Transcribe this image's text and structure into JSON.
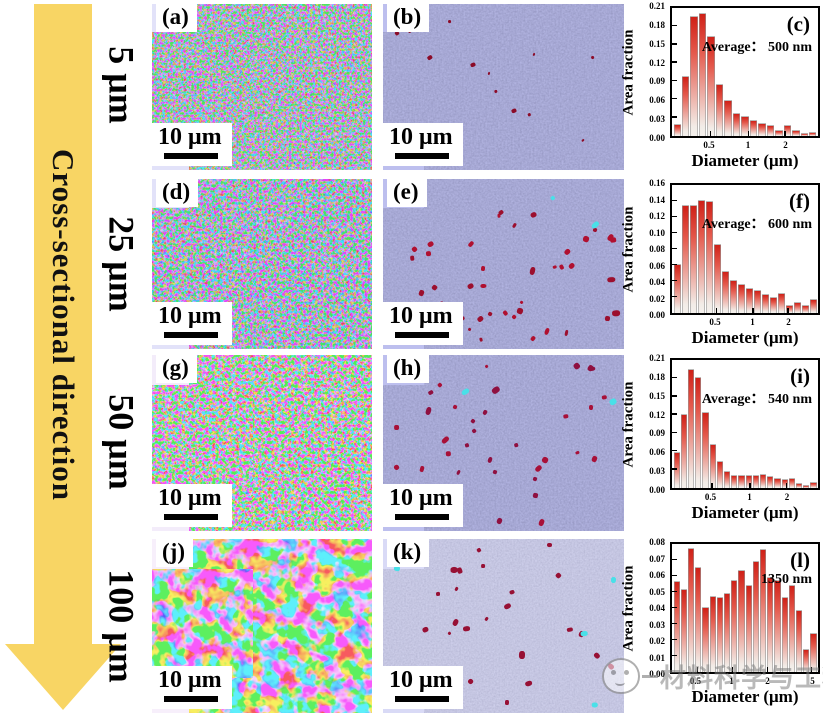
{
  "figure": {
    "arrow_label": "Cross-sectional direction",
    "watermark_text": "材料科学与工程",
    "rows": [
      {
        "depth_label": "5 μm",
        "panel1": {
          "letter": "(a)",
          "scalebar": "10 μm"
        },
        "panel2": {
          "letter": "(b)",
          "scalebar": "10 μm"
        }
      },
      {
        "depth_label": "25 μm",
        "panel1": {
          "letter": "(d)",
          "scalebar": "10 μm"
        },
        "panel2": {
          "letter": "(e)",
          "scalebar": "10 μm"
        }
      },
      {
        "depth_label": "50 μm",
        "panel1": {
          "letter": "(g)",
          "scalebar": "10 μm"
        },
        "panel2": {
          "letter": "(h)",
          "scalebar": "10 μm"
        }
      },
      {
        "depth_label": "100 μm",
        "panel1": {
          "letter": "(j)",
          "scalebar": "10 μm"
        },
        "panel2": {
          "letter": "(k)",
          "scalebar": "10 μm"
        }
      }
    ]
  },
  "chart_data": [
    {
      "type": "bar",
      "panel_letter": "(c)",
      "annotation": "Average：  500 nm",
      "xlabel": "Diameter (μm)",
      "ylabel": "Area fraction",
      "ylim": [
        0,
        0.21
      ],
      "yticks": [
        "0.00",
        "0.03",
        "0.06",
        "0.09",
        "0.12",
        "0.15",
        "0.18",
        "0.21"
      ],
      "xticks": [
        {
          "label": "0.5",
          "pos": 0.26
        },
        {
          "label": "1",
          "pos": 0.52
        },
        {
          "label": "2",
          "pos": 0.77
        }
      ],
      "values": [
        0.018,
        0.097,
        0.195,
        0.201,
        0.162,
        0.084,
        0.057,
        0.036,
        0.031,
        0.024,
        0.02,
        0.016,
        0.008,
        0.016,
        0.008,
        0.004,
        0.005
      ],
      "bar_color_top": "#cf2017",
      "legend": "none",
      "grid": false
    },
    {
      "type": "bar",
      "panel_letter": "(f)",
      "annotation": "Average：  600 nm",
      "xlabel": "Diameter (μm)",
      "ylabel": "Area fraction",
      "ylim": [
        0,
        0.16
      ],
      "yticks": [
        "0.00",
        "0.02",
        "0.04",
        "0.06",
        "0.08",
        "0.10",
        "0.12",
        "0.14",
        "0.16"
      ],
      "xticks": [
        {
          "label": "0.5",
          "pos": 0.3
        },
        {
          "label": "1",
          "pos": 0.55
        },
        {
          "label": "2",
          "pos": 0.79
        }
      ],
      "values": [
        0.06,
        0.134,
        0.134,
        0.14,
        0.139,
        0.085,
        0.051,
        0.04,
        0.035,
        0.03,
        0.028,
        0.023,
        0.019,
        0.024,
        0.009,
        0.013,
        0.009,
        0.016
      ],
      "bar_color_top": "#cf2017",
      "legend": "none",
      "grid": false
    },
    {
      "type": "bar",
      "panel_letter": "(i)",
      "annotation": "Average：  540 nm",
      "xlabel": "Diameter (μm)",
      "ylabel": "Area fraction",
      "ylim": [
        0,
        0.21
      ],
      "yticks": [
        "0.00",
        "0.03",
        "0.06",
        "0.09",
        "0.12",
        "0.15",
        "0.18",
        "0.21"
      ],
      "xticks": [
        {
          "label": "0.5",
          "pos": 0.27
        },
        {
          "label": "1",
          "pos": 0.53
        },
        {
          "label": "2",
          "pos": 0.78
        }
      ],
      "values": [
        0.058,
        0.12,
        0.193,
        0.181,
        0.123,
        0.07,
        0.042,
        0.027,
        0.02,
        0.019,
        0.02,
        0.02,
        0.021,
        0.018,
        0.014,
        0.013,
        0.014,
        0.006,
        0.003,
        0.008
      ],
      "bar_color_top": "#cf2017",
      "legend": "none",
      "grid": false
    },
    {
      "type": "bar",
      "panel_letter": "(l)",
      "annotation": "1350 nm",
      "xlabel": "Diameter (μm)",
      "ylabel": "Area fraction",
      "ylim": [
        0,
        0.08
      ],
      "yticks": [
        "0.00",
        "0.01",
        "0.02",
        "0.03",
        "0.04",
        "0.05",
        "0.06",
        "0.07",
        "0.08"
      ],
      "xticks": [
        {
          "label": "0.5",
          "pos": 0.17
        },
        {
          "label": "1",
          "pos": 0.41
        },
        {
          "label": "2",
          "pos": 0.65
        },
        {
          "label": "5",
          "pos": 0.95
        }
      ],
      "values": [
        0.056,
        0.051,
        0.077,
        0.065,
        0.04,
        0.047,
        0.046,
        0.049,
        0.057,
        0.063,
        0.054,
        0.069,
        0.076,
        0.059,
        0.057,
        0.046,
        0.054,
        0.038,
        0.014,
        0.024
      ],
      "bar_color_top": "#cf2017",
      "legend": "none",
      "grid": false
    }
  ]
}
